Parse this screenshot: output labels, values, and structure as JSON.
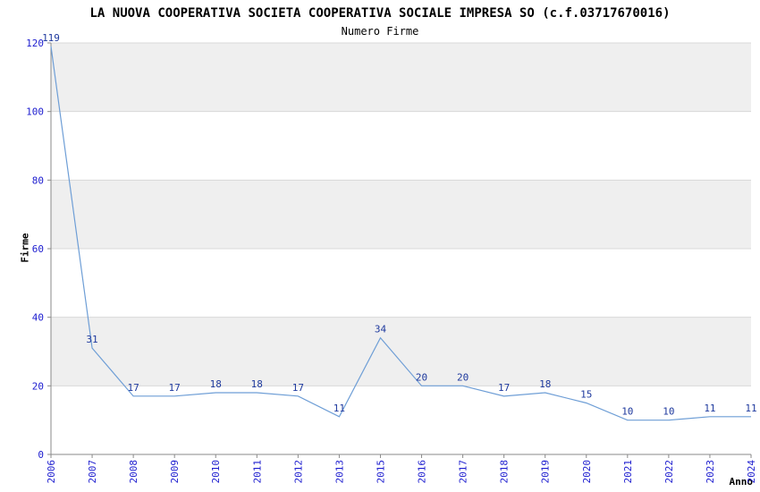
{
  "page": {
    "background": "#ffffff"
  },
  "chart_data": {
    "type": "line",
    "title": "LA NUOVA COOPERATIVA SOCIETA COOPERATIVA SOCIALE IMPRESA SO (c.f.03717670016)",
    "subtitle": "Numero Firme",
    "xlabel": "Anno",
    "ylabel": "Firme",
    "categories": [
      "2006",
      "2007",
      "2008",
      "2009",
      "2010",
      "2011",
      "2012",
      "2013",
      "2015",
      "2016",
      "2017",
      "2018",
      "2019",
      "2020",
      "2021",
      "2022",
      "2023",
      "2024"
    ],
    "values": [
      119,
      31,
      17,
      17,
      18,
      18,
      17,
      11,
      34,
      20,
      20,
      17,
      18,
      15,
      10,
      10,
      11,
      11
    ],
    "ylim": [
      0,
      120
    ],
    "ytick_step": 20,
    "yticks": [
      0,
      20,
      40,
      60,
      80,
      100,
      120
    ],
    "grid": "horizontal",
    "legend": "none",
    "colors": {
      "line": "#6e9ed6",
      "band": "#efefef",
      "grid": "#d8d8d8",
      "axis": "#8a8a8a",
      "tick_label": "#1c1ccf",
      "value_label": "#1f3a9e",
      "title": "#000000"
    }
  }
}
